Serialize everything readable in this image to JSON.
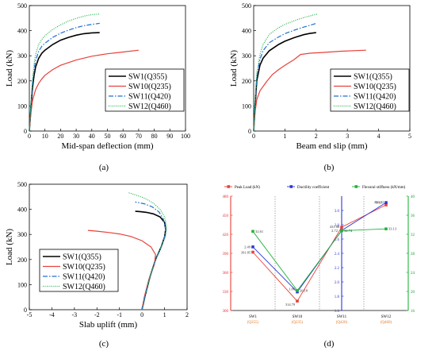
{
  "captions": [
    "(a)",
    "(b)",
    "(c)",
    "(d)"
  ],
  "colors": {
    "SW1": "#000000",
    "SW10": "#e8413a",
    "SW11": "#1f6fd1",
    "SW12": "#19b34d",
    "peak": "#e8413a",
    "ductility": "#2a37d8",
    "stiffness": "#22b33c",
    "tick_orange": "#e07b2a"
  },
  "legend": [
    "SW1(Q355)",
    "SW10(Q235)",
    "SW11(Q420)",
    "SW12(Q460)"
  ],
  "chart_data": [
    {
      "type": "line",
      "xlabel": "Mid-span deflection (mm)",
      "ylabel": "Load (kN)",
      "xlim": [
        0,
        100
      ],
      "ylim": [
        0,
        500
      ],
      "xticks": [
        "0",
        "10",
        "20",
        "30",
        "40",
        "50",
        "60",
        "70",
        "80",
        "90",
        "100"
      ],
      "yticks": [
        "0",
        "100",
        "200",
        "300",
        "400",
        "500"
      ],
      "series": [
        {
          "name": "SW1(Q355)",
          "x": [
            0,
            1,
            2,
            3,
            4,
            6,
            8,
            10,
            15,
            20,
            25,
            30,
            35,
            40,
            45
          ],
          "y": [
            0,
            90,
            170,
            220,
            255,
            290,
            310,
            322,
            345,
            362,
            373,
            382,
            388,
            391,
            392
          ]
        },
        {
          "name": "SW10(Q235)",
          "x": [
            0,
            1,
            2,
            4,
            6,
            8,
            10,
            15,
            20,
            30,
            40,
            50,
            60,
            70
          ],
          "y": [
            0,
            70,
            120,
            165,
            190,
            208,
            222,
            245,
            262,
            283,
            298,
            308,
            315,
            322
          ]
        },
        {
          "name": "SW11(Q420)",
          "x": [
            0,
            1,
            2,
            3,
            4,
            6,
            8,
            10,
            15,
            20,
            25,
            30,
            35,
            40,
            45
          ],
          "y": [
            0,
            100,
            185,
            240,
            280,
            318,
            338,
            350,
            373,
            390,
            402,
            412,
            420,
            425,
            429
          ]
        },
        {
          "name": "SW12(Q460)",
          "x": [
            0,
            1,
            2,
            3,
            4,
            6,
            8,
            10,
            15,
            20,
            25,
            30,
            35,
            40,
            45
          ],
          "y": [
            0,
            110,
            205,
            265,
            305,
            345,
            365,
            380,
            405,
            423,
            438,
            449,
            458,
            464,
            466
          ]
        }
      ]
    },
    {
      "type": "line",
      "xlabel": "Beam end slip (mm)",
      "ylabel": "Load (kN)",
      "xlim": [
        0,
        5
      ],
      "ylim": [
        0,
        500
      ],
      "xticks": [
        "0",
        "1",
        "2",
        "3",
        "4",
        "5"
      ],
      "yticks": [
        "0",
        "100",
        "200",
        "300",
        "400",
        "500"
      ],
      "series": [
        {
          "name": "SW1(Q355)",
          "x": [
            0,
            0.05,
            0.1,
            0.2,
            0.3,
            0.5,
            0.8,
            1.0,
            1.3,
            1.6,
            1.8,
            2.0
          ],
          "y": [
            0,
            110,
            200,
            262,
            290,
            320,
            345,
            358,
            372,
            384,
            389,
            392
          ]
        },
        {
          "name": "SW10(Q235)",
          "x": [
            0,
            0.05,
            0.1,
            0.2,
            0.4,
            0.6,
            0.8,
            1.0,
            1.3,
            1.5,
            1.8,
            2.2,
            2.8,
            3.6
          ],
          "y": [
            0,
            80,
            125,
            160,
            195,
            225,
            245,
            262,
            285,
            305,
            310,
            313,
            318,
            322
          ]
        },
        {
          "name": "SW11(Q420)",
          "x": [
            0,
            0.05,
            0.1,
            0.2,
            0.3,
            0.5,
            0.8,
            1.0,
            1.3,
            1.6,
            1.9,
            2.0
          ],
          "y": [
            0,
            120,
            215,
            285,
            320,
            352,
            375,
            388,
            402,
            414,
            425,
            429
          ]
        },
        {
          "name": "SW12(Q460)",
          "x": [
            0,
            0.05,
            0.1,
            0.2,
            0.3,
            0.5,
            0.8,
            1.0,
            1.3,
            1.6,
            1.9,
            2.05
          ],
          "y": [
            0,
            130,
            230,
            305,
            345,
            385,
            412,
            425,
            440,
            452,
            462,
            466
          ]
        }
      ]
    },
    {
      "type": "line",
      "xlabel": "Slab uplift (mm)",
      "ylabel": "Load (kN)",
      "xlim": [
        -5,
        2
      ],
      "ylim": [
        0,
        500
      ],
      "xticks": [
        "-5",
        "-4",
        "-3",
        "-2",
        "-1",
        "0",
        "1",
        "2"
      ],
      "yticks": [
        "0",
        "100",
        "200",
        "300",
        "400",
        "500"
      ],
      "series": [
        {
          "name": "SW1(Q355)",
          "x": [
            0,
            0.15,
            0.35,
            0.6,
            0.85,
            1.0,
            1.05,
            1.0,
            0.8,
            0.5,
            0.2,
            -0.1,
            -0.3
          ],
          "y": [
            0,
            60,
            130,
            200,
            250,
            290,
            320,
            348,
            370,
            382,
            388,
            391,
            392
          ]
        },
        {
          "name": "SW10(Q235)",
          "x": [
            0,
            0.1,
            0.3,
            0.55,
            0.6,
            0.4,
            0.0,
            -0.5,
            -1.0,
            -1.5,
            -2.0,
            -2.4
          ],
          "y": [
            0,
            50,
            120,
            180,
            220,
            250,
            275,
            292,
            302,
            308,
            313,
            316
          ]
        },
        {
          "name": "SW11(Q420)",
          "x": [
            0,
            0.15,
            0.35,
            0.6,
            0.85,
            1.0,
            1.05,
            0.95,
            0.75,
            0.45,
            0.1,
            -0.3
          ],
          "y": [
            0,
            60,
            130,
            200,
            250,
            290,
            325,
            360,
            390,
            410,
            422,
            429
          ]
        },
        {
          "name": "SW12(Q460)",
          "x": [
            0,
            0.15,
            0.35,
            0.6,
            0.85,
            1.05,
            1.1,
            1.0,
            0.8,
            0.5,
            0.1,
            -0.3,
            -0.6
          ],
          "y": [
            0,
            60,
            130,
            200,
            250,
            295,
            330,
            370,
            400,
            425,
            445,
            458,
            466
          ]
        }
      ]
    },
    {
      "type": "line",
      "legend_entries": [
        "Peak Load (kN)",
        "Ductility coefficient",
        "Flexural stiffness (kN/mm)"
      ],
      "categories": [
        "SW1",
        "SW10",
        "SW11",
        "SW12"
      ],
      "category_sublabels": [
        "(Q355)",
        "(Q235)",
        "(Q420)",
        "(Q460)"
      ],
      "ylim_left": [
        300,
        480
      ],
      "yticks_left": [
        "300",
        "330",
        "360",
        "390",
        "420",
        "450",
        "480"
      ],
      "ylim_mid": [
        1.6,
        3.2
      ],
      "yticks_mid": [
        "1.6",
        "1.8",
        "2.0",
        "2.2",
        "2.4",
        "2.6",
        "2.8",
        "3.0"
      ],
      "ylim_right": [
        16,
        40
      ],
      "yticks_right": [
        "16",
        "20",
        "24",
        "28",
        "32",
        "36",
        "40"
      ],
      "series": [
        {
          "name": "Peak Load (kN)",
          "values": [
            391.85,
            314.79,
            431.08,
            466.22
          ],
          "labels": [
            "391.85",
            "314.79",
            "431.08",
            "466.22"
          ]
        },
        {
          "name": "Ductility coefficient",
          "values": [
            2.49,
            1.86,
            2.72,
            3.11
          ],
          "labels": [
            "2.49",
            "1.86",
            "2.72",
            "3.11"
          ]
        },
        {
          "name": "Flexural stiffness (kN/mm)",
          "values": [
            32.61,
            20.18,
            32.74,
            33.13
          ],
          "labels": [
            "32.61",
            "20.18",
            "32.74",
            "33.13"
          ]
        }
      ]
    }
  ]
}
